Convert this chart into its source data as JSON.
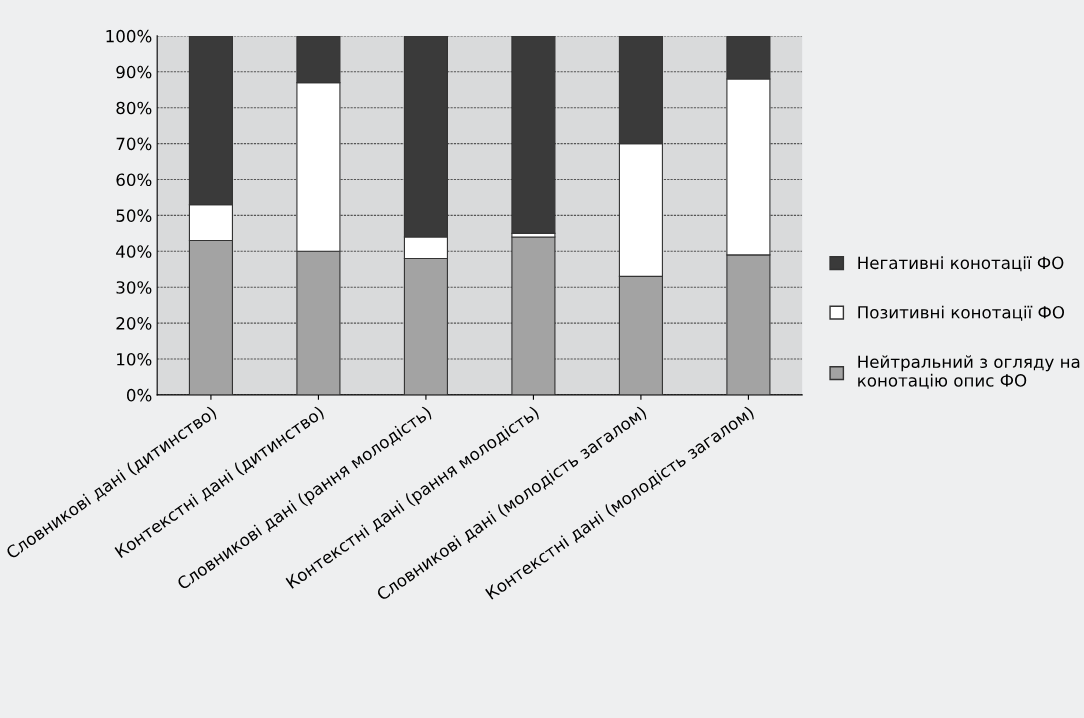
{
  "chart_data": {
    "type": "bar",
    "stacked": true,
    "categories": [
      "Словникові дані (дитинство)",
      "Контекстні дані (дитинство)",
      "Словникові дані (рання молодість)",
      "Контекстні дані (рання молодість)",
      "Словникові дані (молодість загалом)",
      "Контекстні дані (молодість загалом)"
    ],
    "series": [
      {
        "name": "Нейтральний з огляду на\nконотацію опис ФО",
        "color": "#a3a3a3",
        "values": [
          43,
          40,
          38,
          44,
          33,
          39
        ]
      },
      {
        "name": "Позитивні конотації ФО",
        "color": "#ffffff",
        "values": [
          10,
          47,
          6,
          1,
          37,
          49
        ]
      },
      {
        "name": "Негативні конотації ФО",
        "color": "#3a3a3a",
        "values": [
          47,
          13,
          56,
          55,
          30,
          12
        ]
      }
    ],
    "ylim": [
      0,
      100
    ],
    "yticks": [
      {
        "value": 0,
        "label": "0%"
      },
      {
        "value": 10,
        "label": "10%"
      },
      {
        "value": 20,
        "label": "20%"
      },
      {
        "value": 30,
        "label": "30%"
      },
      {
        "value": 40,
        "label": "40%"
      },
      {
        "value": 50,
        "label": "50%"
      },
      {
        "value": 60,
        "label": "60%"
      },
      {
        "value": 70,
        "label": "70%"
      },
      {
        "value": 80,
        "label": "80%"
      },
      {
        "value": 90,
        "label": "90%"
      },
      {
        "value": 100,
        "label": "100%"
      }
    ],
    "grid": "y",
    "legend": "right"
  }
}
